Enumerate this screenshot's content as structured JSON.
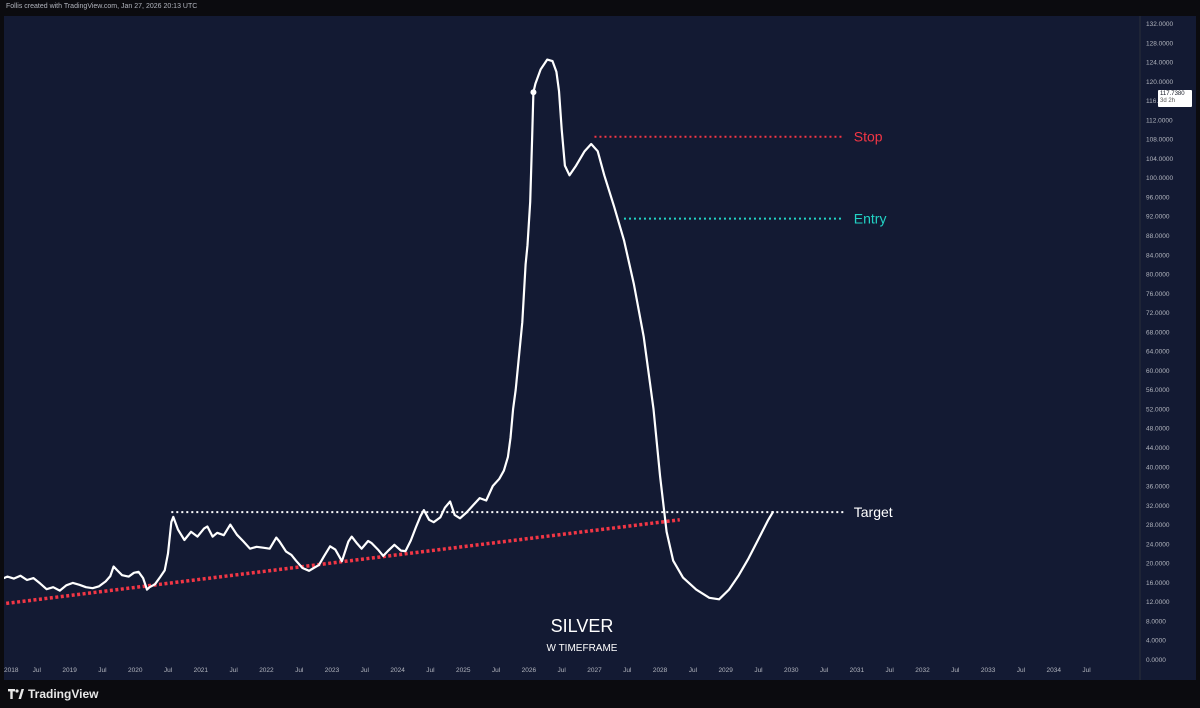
{
  "header": {
    "credit": "Follis created with TradingView.com, Jan 27, 2026 20:13 UTC"
  },
  "footer": {
    "brand": "TradingView"
  },
  "price_tag": {
    "value": "117.7380",
    "countdown": "3d 2h"
  },
  "chart_data": {
    "type": "line",
    "title": "SILVER",
    "subtitle": "W TIMEFRAME",
    "xlabel": "",
    "ylabel": "",
    "ylim": [
      0,
      132
    ],
    "xlim": [
      2018.0,
      2035.3
    ],
    "y_ticks": [
      "132.0000",
      "128.0000",
      "124.0000",
      "120.0000",
      "116.0000",
      "112.0000",
      "108.0000",
      "104.0000",
      "100.0000",
      "96.0000",
      "92.0000",
      "88.0000",
      "84.0000",
      "80.0000",
      "76.0000",
      "72.0000",
      "68.0000",
      "64.0000",
      "60.0000",
      "56.0000",
      "52.0000",
      "48.0000",
      "44.0000",
      "40.0000",
      "36.0000",
      "32.0000",
      "28.0000",
      "24.0000",
      "20.0000",
      "16.0000",
      "12.0000",
      "8.0000",
      "4.0000",
      "0.0000"
    ],
    "x_ticks": [
      {
        "label": "2018",
        "x": 2018.0
      },
      {
        "label": "Jul",
        "x": 2018.5
      },
      {
        "label": "2019",
        "x": 2019.0
      },
      {
        "label": "Jul",
        "x": 2019.5
      },
      {
        "label": "2020",
        "x": 2020.0
      },
      {
        "label": "Jul",
        "x": 2020.5
      },
      {
        "label": "2021",
        "x": 2021.0
      },
      {
        "label": "Jul",
        "x": 2021.5
      },
      {
        "label": "2022",
        "x": 2022.0
      },
      {
        "label": "Jul",
        "x": 2022.5
      },
      {
        "label": "2023",
        "x": 2023.0
      },
      {
        "label": "Jul",
        "x": 2023.5
      },
      {
        "label": "2024",
        "x": 2024.0
      },
      {
        "label": "Jul",
        "x": 2024.5
      },
      {
        "label": "2025",
        "x": 2025.0
      },
      {
        "label": "Jul",
        "x": 2025.5
      },
      {
        "label": "2026",
        "x": 2026.0
      },
      {
        "label": "Jul",
        "x": 2026.5
      },
      {
        "label": "2027",
        "x": 2027.0
      },
      {
        "label": "Jul",
        "x": 2027.5
      },
      {
        "label": "2028",
        "x": 2028.0
      },
      {
        "label": "Jul",
        "x": 2028.5
      },
      {
        "label": "2029",
        "x": 2029.0
      },
      {
        "label": "Jul",
        "x": 2029.5
      },
      {
        "label": "2030",
        "x": 2030.0
      },
      {
        "label": "Jul",
        "x": 2030.5
      },
      {
        "label": "2031",
        "x": 2031.0
      },
      {
        "label": "Jul",
        "x": 2031.5
      },
      {
        "label": "2032",
        "x": 2032.0
      },
      {
        "label": "Jul",
        "x": 2032.5
      },
      {
        "label": "2033",
        "x": 2033.0
      },
      {
        "label": "Jul",
        "x": 2033.5
      },
      {
        "label": "2034",
        "x": 2034.0
      },
      {
        "label": "Jul",
        "x": 2034.5
      }
    ],
    "grid": false,
    "series": [
      {
        "color": "#ffffff",
        "points": [
          [
            2017.95,
            16.6
          ],
          [
            2018.05,
            17.2
          ],
          [
            2018.15,
            16.8
          ],
          [
            2018.25,
            17.4
          ],
          [
            2018.35,
            16.5
          ],
          [
            2018.45,
            16.9
          ],
          [
            2018.55,
            15.8
          ],
          [
            2018.65,
            14.6
          ],
          [
            2018.75,
            15.0
          ],
          [
            2018.85,
            14.3
          ],
          [
            2018.95,
            15.4
          ],
          [
            2019.05,
            15.9
          ],
          [
            2019.15,
            15.5
          ],
          [
            2019.25,
            15.0
          ],
          [
            2019.35,
            14.8
          ],
          [
            2019.45,
            15.2
          ],
          [
            2019.55,
            16.2
          ],
          [
            2019.62,
            17.3
          ],
          [
            2019.67,
            19.3
          ],
          [
            2019.72,
            18.6
          ],
          [
            2019.8,
            17.5
          ],
          [
            2019.9,
            17.2
          ],
          [
            2019.98,
            18.0
          ],
          [
            2020.05,
            18.2
          ],
          [
            2020.12,
            16.9
          ],
          [
            2020.18,
            14.5
          ],
          [
            2020.22,
            15.0
          ],
          [
            2020.3,
            15.6
          ],
          [
            2020.38,
            17.1
          ],
          [
            2020.45,
            18.5
          ],
          [
            2020.5,
            22.0
          ],
          [
            2020.55,
            28.5
          ],
          [
            2020.58,
            29.6
          ],
          [
            2020.65,
            27.0
          ],
          [
            2020.75,
            24.8
          ],
          [
            2020.85,
            26.5
          ],
          [
            2020.95,
            25.5
          ],
          [
            2021.05,
            27.2
          ],
          [
            2021.1,
            27.6
          ],
          [
            2021.18,
            25.5
          ],
          [
            2021.25,
            26.3
          ],
          [
            2021.35,
            25.8
          ],
          [
            2021.45,
            28.0
          ],
          [
            2021.55,
            25.9
          ],
          [
            2021.65,
            24.5
          ],
          [
            2021.75,
            23.0
          ],
          [
            2021.85,
            23.4
          ],
          [
            2021.95,
            23.2
          ],
          [
            2022.05,
            23.0
          ],
          [
            2022.15,
            25.3
          ],
          [
            2022.2,
            24.5
          ],
          [
            2022.3,
            22.4
          ],
          [
            2022.38,
            21.7
          ],
          [
            2022.45,
            20.5
          ],
          [
            2022.55,
            19.0
          ],
          [
            2022.65,
            18.4
          ],
          [
            2022.72,
            19.0
          ],
          [
            2022.8,
            19.6
          ],
          [
            2022.88,
            21.5
          ],
          [
            2022.97,
            23.5
          ],
          [
            2023.05,
            22.8
          ],
          [
            2023.15,
            20.4
          ],
          [
            2023.25,
            24.5
          ],
          [
            2023.3,
            25.5
          ],
          [
            2023.38,
            24.1
          ],
          [
            2023.45,
            23.0
          ],
          [
            2023.55,
            24.6
          ],
          [
            2023.6,
            24.2
          ],
          [
            2023.7,
            22.8
          ],
          [
            2023.78,
            21.5
          ],
          [
            2023.85,
            22.5
          ],
          [
            2023.95,
            23.8
          ],
          [
            2024.05,
            22.6
          ],
          [
            2024.12,
            22.5
          ],
          [
            2024.2,
            24.7
          ],
          [
            2024.28,
            27.5
          ],
          [
            2024.35,
            29.8
          ],
          [
            2024.4,
            31.0
          ],
          [
            2024.48,
            29.0
          ],
          [
            2024.55,
            28.5
          ],
          [
            2024.65,
            29.5
          ],
          [
            2024.72,
            31.5
          ],
          [
            2024.8,
            32.8
          ],
          [
            2024.87,
            30.0
          ],
          [
            2024.95,
            29.3
          ],
          [
            2025.05,
            30.5
          ],
          [
            2025.15,
            32.0
          ],
          [
            2025.25,
            33.5
          ],
          [
            2025.35,
            33.0
          ],
          [
            2025.45,
            36.0
          ],
          [
            2025.55,
            37.5
          ],
          [
            2025.62,
            39.2
          ],
          [
            2025.68,
            42.0
          ],
          [
            2025.72,
            46.0
          ],
          [
            2025.76,
            52.0
          ],
          [
            2025.8,
            56.0
          ],
          [
            2025.85,
            63.0
          ],
          [
            2025.9,
            70.0
          ],
          [
            2025.95,
            82.0
          ],
          [
            2025.98,
            86.0
          ],
          [
            2026.02,
            95.0
          ],
          [
            2026.05,
            108.0
          ],
          [
            2026.07,
            117.74
          ]
        ]
      },
      {
        "color": "#ffffff",
        "points": [
          [
            2026.07,
            117.74
          ],
          [
            2026.1,
            119.5
          ],
          [
            2026.18,
            122.5
          ],
          [
            2026.28,
            124.5
          ],
          [
            2026.36,
            124.2
          ],
          [
            2026.42,
            122.0
          ],
          [
            2026.46,
            118.0
          ],
          [
            2026.5,
            110.0
          ],
          [
            2026.55,
            102.5
          ],
          [
            2026.62,
            100.5
          ],
          [
            2026.72,
            102.5
          ],
          [
            2026.85,
            105.5
          ],
          [
            2026.95,
            107.0
          ],
          [
            2027.05,
            105.5
          ],
          [
            2027.15,
            100.5
          ],
          [
            2027.3,
            94.0
          ],
          [
            2027.45,
            87.0
          ],
          [
            2027.6,
            78.0
          ],
          [
            2027.75,
            67.0
          ],
          [
            2027.9,
            52.0
          ],
          [
            2028.0,
            38.0
          ],
          [
            2028.1,
            26.5
          ],
          [
            2028.2,
            20.5
          ],
          [
            2028.35,
            17.0
          ],
          [
            2028.55,
            14.5
          ],
          [
            2028.75,
            12.8
          ],
          [
            2028.9,
            12.5
          ],
          [
            2029.05,
            14.5
          ],
          [
            2029.2,
            17.5
          ],
          [
            2029.35,
            21.0
          ],
          [
            2029.5,
            25.0
          ],
          [
            2029.65,
            29.0
          ],
          [
            2029.72,
            30.6
          ]
        ]
      }
    ],
    "annotations": [
      {
        "label": "Stop",
        "y": 108.5,
        "x_start": 2027.0,
        "x_end": 2030.8,
        "color": "#f23645"
      },
      {
        "label": "Entry",
        "y": 91.5,
        "x_start": 2027.45,
        "x_end": 2030.8,
        "color": "#22d3c5"
      },
      {
        "label": "Target",
        "y": 30.6,
        "x_start": 2020.55,
        "x_end": 2030.8,
        "color": "#ffffff"
      }
    ],
    "trendline": {
      "x_start": 2017.95,
      "y_start": 11.5,
      "x_end": 2028.3,
      "y_end": 29.0,
      "color": "#f23645"
    }
  }
}
